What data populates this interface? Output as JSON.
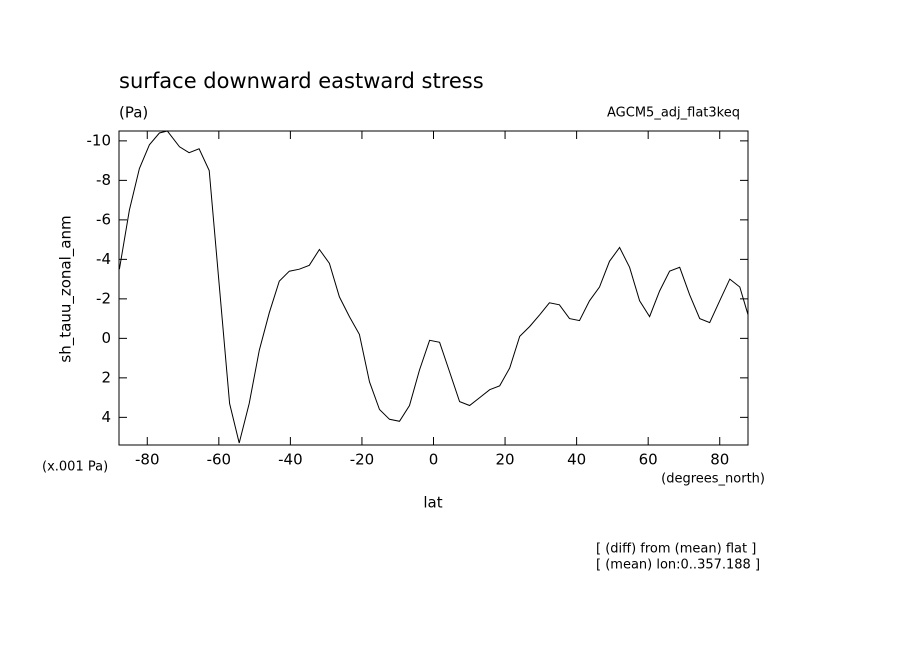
{
  "chart_data": {
    "type": "line",
    "title": "surface downward eastward stress",
    "subtitle": "(Pa)",
    "annotation_right": "AGCM5_adj_flat3keq",
    "ylabel": "sh_tauu_zonal_anm",
    "yunit": "(x.001 Pa)",
    "xlabel": "lat",
    "xunit": "(degrees_north)",
    "notes": [
      "[ (diff) from (mean) flat ]",
      "[ (mean) lon:0..357.188 ]"
    ],
    "xlim": [
      -87.9,
      87.9
    ],
    "xticks": [
      -80,
      -60,
      -40,
      -20,
      0,
      20,
      40,
      60,
      80
    ],
    "ylim": [
      -10.5,
      5.4
    ],
    "y_inverted": true,
    "yticks": [
      -10,
      -8,
      -6,
      -4,
      -2,
      0,
      2,
      4
    ],
    "series": [
      {
        "name": "sh_tauu_zonal_anm",
        "color": "#000000",
        "x": [
          -87.8,
          -85,
          -82.2,
          -79.4,
          -76.6,
          -74.4,
          -71,
          -68.3,
          -65.5,
          -62.7,
          -57,
          -54.3,
          -51.5,
          -48.7,
          -45.9,
          -43.1,
          -40.3,
          -37.5,
          -34.7,
          -31.9,
          -29.1,
          -26.3,
          -23.5,
          -20.7,
          -17.9,
          -15.1,
          -12.3,
          -9.5,
          -6.7,
          -3.9,
          -1.1,
          1.7,
          4.5,
          7.3,
          10.1,
          12.9,
          15.7,
          18.5,
          21.3,
          24.1,
          26.9,
          29.7,
          32.4,
          35.2,
          38,
          40.8,
          43.6,
          46.4,
          49.2,
          52,
          54.8,
          57.6,
          60.4,
          63.2,
          66,
          68.8,
          71.6,
          74.4,
          77.2,
          80,
          82.8,
          85.6,
          87.9
        ],
        "values": [
          -3.5,
          -6.5,
          -8.6,
          -9.8,
          -10.4,
          -10.5,
          -9.7,
          -9.4,
          -9.6,
          -8.5,
          3.3,
          5.3,
          3.3,
          0.6,
          -1.3,
          -2.9,
          -3.4,
          -3.5,
          -3.7,
          -4.5,
          -3.8,
          -2.1,
          -1.1,
          -0.2,
          2.2,
          3.6,
          4.1,
          4.2,
          3.4,
          1.6,
          0.1,
          0.2,
          1.7,
          3.2,
          3.4,
          3.0,
          2.6,
          2.4,
          1.5,
          -0.1,
          -0.6,
          -1.2,
          -1.8,
          -1.7,
          -1.0,
          -0.9,
          -1.9,
          -2.6,
          -3.9,
          -4.6,
          -3.6,
          -1.9,
          -1.1,
          -2.4,
          -3.4,
          -3.6,
          -2.2,
          -1.0,
          -0.8,
          -1.9,
          -3.0,
          -2.6,
          -1.2
        ]
      }
    ]
  }
}
